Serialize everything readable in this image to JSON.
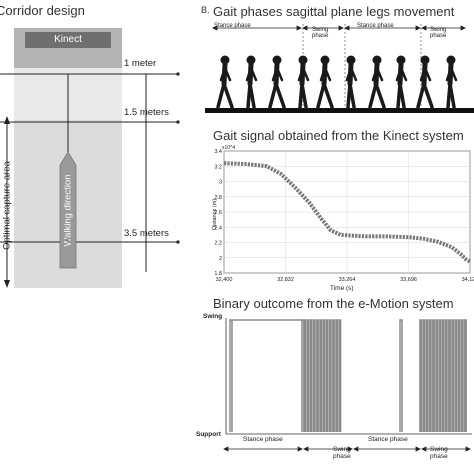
{
  "panel_a": {
    "title": "Corridor design",
    "kinect_label": "Kinect",
    "distances": [
      "1 meter",
      "1.5 meters",
      "3.5 meters"
    ],
    "capture_area_label": "Optimal capture area",
    "walking_label": "Walking direction"
  },
  "panel_b": {
    "letter": "B.",
    "title": "Gait phases sagittal plane legs movement",
    "stance_phase": "Stance phase",
    "swing_line1": "Swing",
    "swing_line2": "phase"
  },
  "panel_signal": {
    "title": "Gait signal obtained from the Kinect system"
  },
  "panel_binary": {
    "title": "Binary outcome from the e-Motion system",
    "ylabel_top": "Swing",
    "ylabel_bottom": "Support",
    "stance_phase": "Stance phase",
    "swing_line1": "Swing",
    "swing_line2": "phase"
  },
  "chart_data": {
    "type": "line",
    "title": "",
    "xlabel": "Time (s)",
    "ylabel": "Distance (m)",
    "y_multiplier": "x10^4",
    "xlim": [
      32.4,
      34.128
    ],
    "ylim": [
      1.8,
      3.4
    ],
    "x_ticks": [
      "32,400",
      "32,832",
      "33,264",
      "33,696",
      "34,128"
    ],
    "y_ticks": [
      "3.4",
      "3.2",
      "3",
      "2.8",
      "2.6",
      "2.4",
      "2.2",
      "2",
      "1.8"
    ],
    "series": [
      {
        "x": [
          32.4,
          32.55,
          32.7,
          32.8,
          32.9,
          33.0,
          33.08,
          33.15,
          33.22,
          33.3,
          33.4,
          33.55,
          33.7,
          33.8,
          33.9,
          34.0,
          34.06,
          34.1,
          34.128
        ],
        "y": [
          3.24,
          3.23,
          3.2,
          3.1,
          2.92,
          2.72,
          2.52,
          2.36,
          2.3,
          2.29,
          2.28,
          2.28,
          2.27,
          2.25,
          2.21,
          2.14,
          2.05,
          1.98,
          1.95
        ]
      }
    ]
  }
}
